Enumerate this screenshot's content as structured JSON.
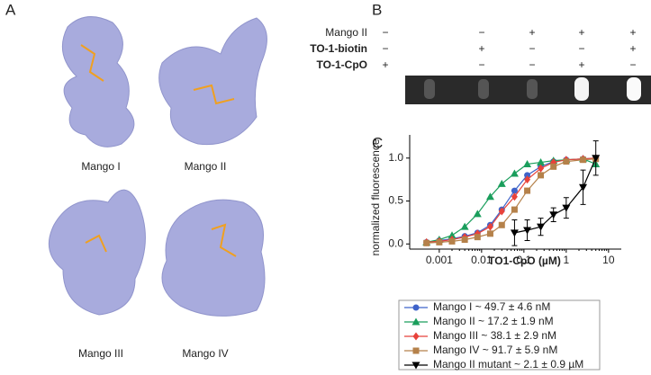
{
  "panels": {
    "a": "A",
    "b": "B",
    "c": "C"
  },
  "structures": [
    "Mango I",
    "Mango II",
    "Mango III",
    "Mango IV"
  ],
  "gel_table": {
    "rows": [
      {
        "label": "Mango II",
        "cells": [
          "−",
          "−",
          "+",
          "+",
          "+"
        ]
      },
      {
        "label": "TO-1-biotin",
        "cells": [
          "−",
          "+",
          "−",
          "−",
          "+"
        ]
      },
      {
        "label": "TO-1-CpO",
        "cells": [
          "+",
          "−",
          "−",
          "+",
          "−"
        ]
      }
    ]
  },
  "chart_data": {
    "type": "scatter-line",
    "xlabel": "TO1-CpO (µM)",
    "ylabel": "normalized fluorescence",
    "log_x": true,
    "xlim": [
      0.0002,
      20
    ],
    "ylim": [
      -0.06,
      1.27
    ],
    "xticks": [
      0.001,
      0.01,
      0.1,
      1,
      10
    ],
    "yticks": [
      {
        "value": 0,
        "label": "0.0"
      },
      {
        "value": 0.5,
        "label": "0.5"
      },
      {
        "value": 1,
        "label": "1.0"
      }
    ],
    "x": [
      0.0005,
      0.001,
      0.002,
      0.004,
      0.008,
      0.016,
      0.03,
      0.06,
      0.12,
      0.25,
      0.5,
      1,
      2.5,
      5
    ],
    "series": [
      {
        "name": "Mango I ~ 49.7 ± 4.6 nM",
        "color": "#3f63c9",
        "marker": "circle",
        "values": [
          0.02,
          0.04,
          0.06,
          0.09,
          0.13,
          0.22,
          0.4,
          0.62,
          0.8,
          0.9,
          0.96,
          0.98,
          0.99,
          1.0
        ]
      },
      {
        "name": "Mango II ~ 17.2 ± 1.9 nM",
        "color": "#1a9e5c",
        "marker": "triangle",
        "values": [
          0.02,
          0.05,
          0.1,
          0.2,
          0.35,
          0.55,
          0.7,
          0.82,
          0.93,
          0.95,
          0.97,
          0.98,
          0.99,
          0.93
        ]
      },
      {
        "name": "Mango III ~ 38.1 ± 2.9 nM",
        "color": "#e8423a",
        "marker": "diamond",
        "values": [
          0.02,
          0.03,
          0.05,
          0.08,
          0.12,
          0.2,
          0.38,
          0.55,
          0.75,
          0.88,
          0.95,
          0.98,
          0.99,
          1.0
        ]
      },
      {
        "name": "Mango IV ~ 91.7 ± 5.9 nM",
        "color": "#b5814a",
        "marker": "square",
        "values": [
          0.01,
          0.02,
          0.03,
          0.05,
          0.08,
          0.12,
          0.22,
          0.4,
          0.62,
          0.8,
          0.9,
          0.96,
          0.98,
          0.99
        ]
      },
      {
        "name": "Mango II mutant ~ 2.1 ± 0.9 µM",
        "color": "#000000",
        "marker": "triangle-down",
        "values": [
          null,
          null,
          null,
          null,
          null,
          null,
          null,
          0.13,
          0.16,
          0.2,
          0.34,
          0.42,
          0.66,
          1.0
        ],
        "errors": [
          null,
          null,
          null,
          null,
          null,
          null,
          null,
          0.15,
          0.12,
          0.1,
          0.08,
          0.12,
          0.2,
          0.2
        ]
      }
    ]
  }
}
